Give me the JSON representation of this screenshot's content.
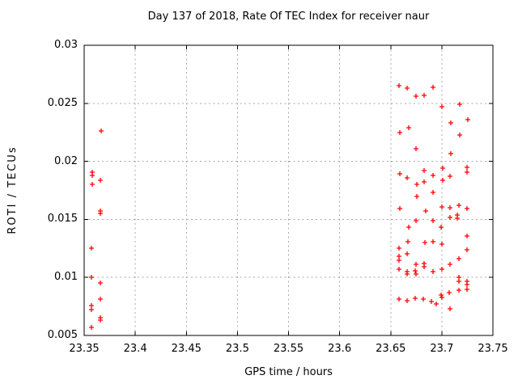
{
  "window": {
    "background": "#ffffff",
    "text_color": "#000000"
  },
  "chart_data": {
    "type": "scatter",
    "title": "Day 137 of 2018, Rate Of TEC Index for receiver naur",
    "xlabel": "GPS time / hours",
    "ylabel": "ROTI / TECUs",
    "xlim": [
      23.35,
      23.75
    ],
    "ylim": [
      0.005,
      0.03
    ],
    "xticks": [
      23.35,
      23.4,
      23.45,
      23.5,
      23.55,
      23.6,
      23.65,
      23.7,
      23.75
    ],
    "xtick_labels": [
      "23.35",
      "23.4",
      "23.45",
      "23.5",
      "23.55",
      "23.6",
      "23.65",
      "23.7",
      "23.75"
    ],
    "yticks": [
      0.005,
      0.01,
      0.015,
      0.02,
      0.025,
      0.03
    ],
    "ytick_labels": [
      "0.005",
      "0.01",
      "0.015",
      "0.02",
      "0.025",
      "0.03"
    ],
    "grid": true,
    "grid_style": "dashed",
    "grid_color": "#a8a8a8",
    "axis_color": "#000000",
    "legend": "none",
    "marker": {
      "shape": "plus",
      "color": "#ff0000",
      "size": 7
    },
    "series": [
      {
        "name": "ROTI",
        "points": [
          [
            23.3666,
            0.0226
          ],
          [
            23.3579,
            0.0191
          ],
          [
            23.3579,
            0.0188
          ],
          [
            23.3658,
            0.0184
          ],
          [
            23.3579,
            0.018
          ],
          [
            23.3658,
            0.0157
          ],
          [
            23.3658,
            0.0155
          ],
          [
            23.3571,
            0.0125
          ],
          [
            23.3571,
            0.01
          ],
          [
            23.3658,
            0.0095
          ],
          [
            23.3658,
            0.0081
          ],
          [
            23.3571,
            0.0076
          ],
          [
            23.3571,
            0.0072
          ],
          [
            23.3658,
            0.0065
          ],
          [
            23.3658,
            0.0063
          ],
          [
            23.3571,
            0.0057
          ],
          [
            23.6581,
            0.0265
          ],
          [
            23.666,
            0.0263
          ],
          [
            23.6747,
            0.0256
          ],
          [
            23.6827,
            0.0257
          ],
          [
            23.6914,
            0.0264
          ],
          [
            23.7001,
            0.0247
          ],
          [
            23.7175,
            0.0249
          ],
          [
            23.7088,
            0.0233
          ],
          [
            23.7255,
            0.0236
          ],
          [
            23.6676,
            0.0229
          ],
          [
            23.6589,
            0.0225
          ],
          [
            23.7175,
            0.0223
          ],
          [
            23.6747,
            0.0211
          ],
          [
            23.7088,
            0.0207
          ],
          [
            23.6589,
            0.0189
          ],
          [
            23.666,
            0.0186
          ],
          [
            23.6827,
            0.0192
          ],
          [
            23.7009,
            0.0194
          ],
          [
            23.708,
            0.0187
          ],
          [
            23.7247,
            0.0195
          ],
          [
            23.7247,
            0.0191
          ],
          [
            23.6827,
            0.0182
          ],
          [
            23.6914,
            0.0188
          ],
          [
            23.6756,
            0.018
          ],
          [
            23.7009,
            0.0184
          ],
          [
            23.6756,
            0.017
          ],
          [
            23.6914,
            0.0173
          ],
          [
            23.6589,
            0.0159
          ],
          [
            23.6843,
            0.0157
          ],
          [
            23.7001,
            0.0161
          ],
          [
            23.708,
            0.016
          ],
          [
            23.7167,
            0.0162
          ],
          [
            23.7247,
            0.0159
          ],
          [
            23.6747,
            0.0149
          ],
          [
            23.6914,
            0.0149
          ],
          [
            23.708,
            0.0152
          ],
          [
            23.7152,
            0.0154
          ],
          [
            23.7152,
            0.0151
          ],
          [
            23.6676,
            0.0143
          ],
          [
            23.6993,
            0.0143
          ],
          [
            23.7247,
            0.0136
          ],
          [
            23.6668,
            0.0131
          ],
          [
            23.6835,
            0.013
          ],
          [
            23.6914,
            0.0131
          ],
          [
            23.7001,
            0.0129
          ],
          [
            23.6581,
            0.0125
          ],
          [
            23.666,
            0.012
          ],
          [
            23.6581,
            0.0118
          ],
          [
            23.6581,
            0.0115
          ],
          [
            23.7247,
            0.0124
          ],
          [
            23.7167,
            0.0116
          ],
          [
            23.6747,
            0.0111
          ],
          [
            23.6827,
            0.0112
          ],
          [
            23.6827,
            0.0109
          ],
          [
            23.6581,
            0.0107
          ],
          [
            23.666,
            0.0105
          ],
          [
            23.674,
            0.0106
          ],
          [
            23.666,
            0.0103
          ],
          [
            23.6747,
            0.0103
          ],
          [
            23.6914,
            0.0105
          ],
          [
            23.7001,
            0.0107
          ],
          [
            23.708,
            0.0111
          ],
          [
            23.7167,
            0.01
          ],
          [
            23.7167,
            0.0097
          ],
          [
            23.7247,
            0.0097
          ],
          [
            23.7247,
            0.0094
          ],
          [
            23.7247,
            0.009
          ],
          [
            23.7167,
            0.0089
          ],
          [
            23.7072,
            0.0087
          ],
          [
            23.6993,
            0.0085
          ],
          [
            23.7001,
            0.0083
          ],
          [
            23.6581,
            0.0081
          ],
          [
            23.666,
            0.008
          ],
          [
            23.674,
            0.0082
          ],
          [
            23.6819,
            0.0081
          ],
          [
            23.6898,
            0.0079
          ],
          [
            23.6946,
            0.0077
          ],
          [
            23.708,
            0.0073
          ]
        ]
      }
    ]
  }
}
